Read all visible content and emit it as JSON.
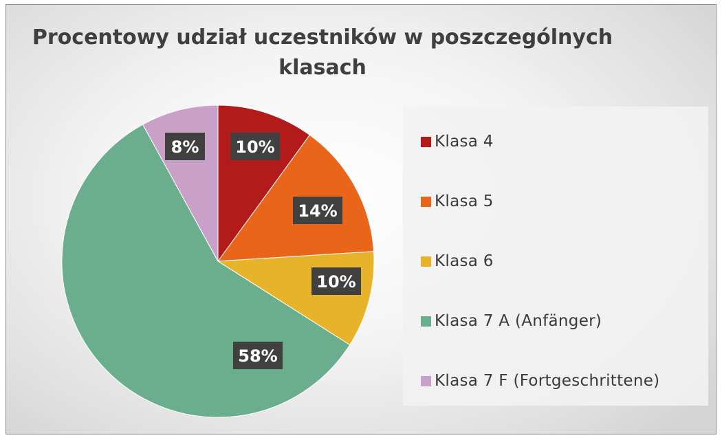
{
  "chart_data": {
    "type": "pie",
    "title": "Procentowy udział uczestników w poszczególnych klasach",
    "title_lines": [
      "Procentowy udział uczestników w poszczególnych",
      "klasach"
    ],
    "categories": [
      "Klasa 4",
      "Klasa 5",
      "Klasa 6",
      "Klasa 7 A (Anfänger)",
      "Klasa 7 F (Fortgeschrittene)"
    ],
    "values": [
      10,
      14,
      10,
      58,
      8
    ],
    "data_labels": [
      "10%",
      "14%",
      "10%",
      "58%",
      "8%"
    ],
    "colors": [
      "#b31b1b",
      "#e8651a",
      "#e6b32a",
      "#6aae8e",
      "#c8a0c8"
    ],
    "legend_position": "right"
  }
}
